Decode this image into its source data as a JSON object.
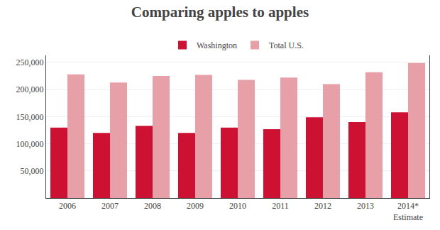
{
  "chart_data": {
    "type": "bar",
    "title": "Comparing apples to apples",
    "categories": [
      "2006",
      "2007",
      "2008",
      "2009",
      "2010",
      "2011",
      "2012",
      "2013",
      "2014*\nEstimate"
    ],
    "series": [
      {
        "name": "Washington",
        "color": "#cc1133",
        "values": [
          130000,
          120000,
          133000,
          120000,
          130000,
          127000,
          149000,
          140000,
          158000
        ]
      },
      {
        "name": "Total U.S.",
        "color": "#e8a0a8",
        "values": [
          228000,
          213000,
          225000,
          227000,
          218000,
          222000,
          210000,
          232000,
          249000
        ]
      }
    ],
    "ylim": [
      0,
      263000
    ],
    "yticks": [
      {
        "value": 50000,
        "label": "50,000"
      },
      {
        "value": 100000,
        "label": "100,000"
      },
      {
        "value": 150000,
        "label": "150,000"
      },
      {
        "value": 200000,
        "label": "200,000"
      },
      {
        "value": 250000,
        "label": "250,000"
      }
    ],
    "grid": true,
    "legend": "top"
  }
}
